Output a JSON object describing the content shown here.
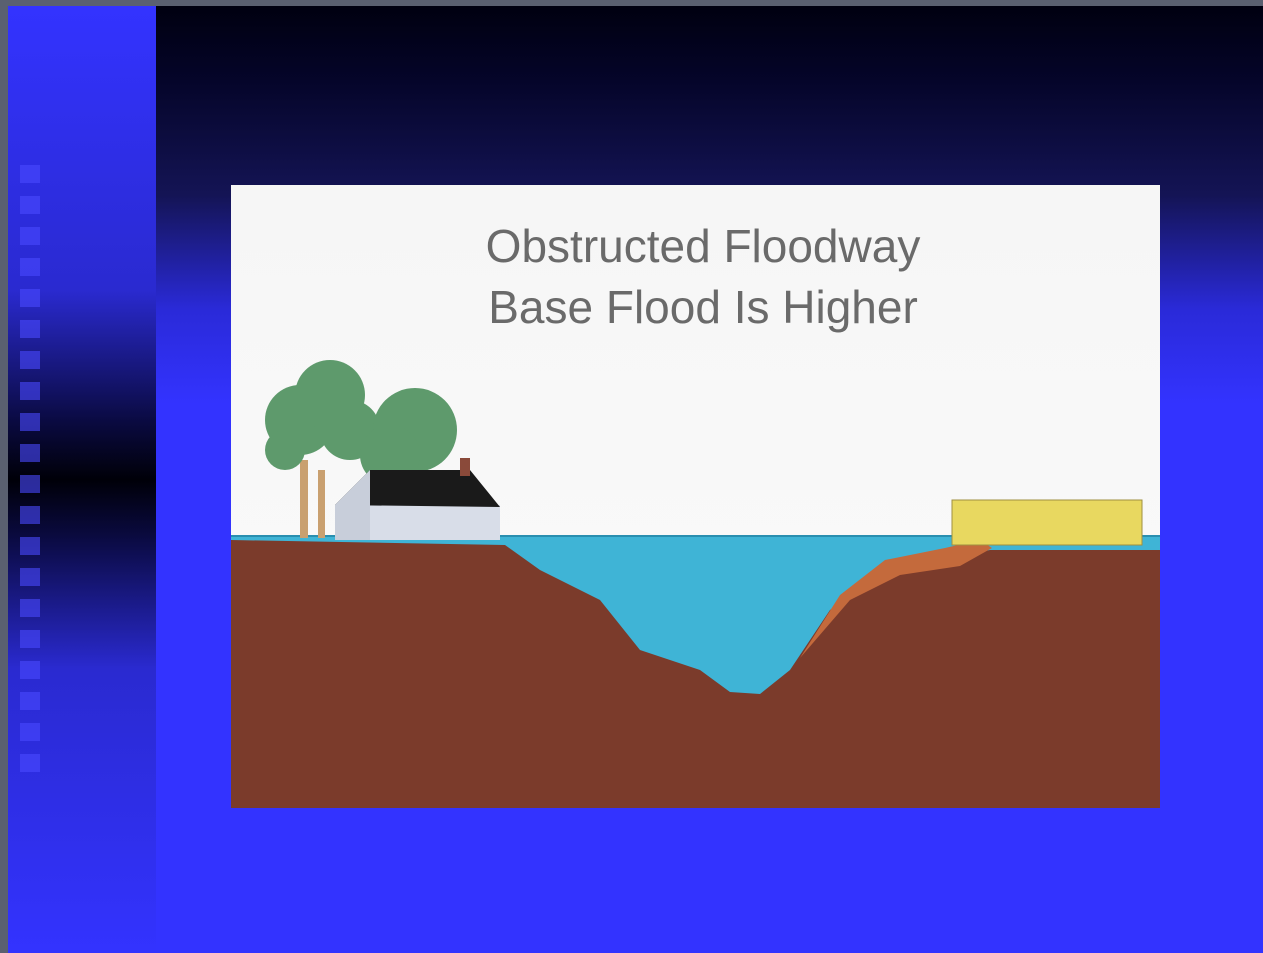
{
  "slide": {
    "title": [
      "Obstructed Floodway",
      "Base Flood Is Higher"
    ]
  }
}
